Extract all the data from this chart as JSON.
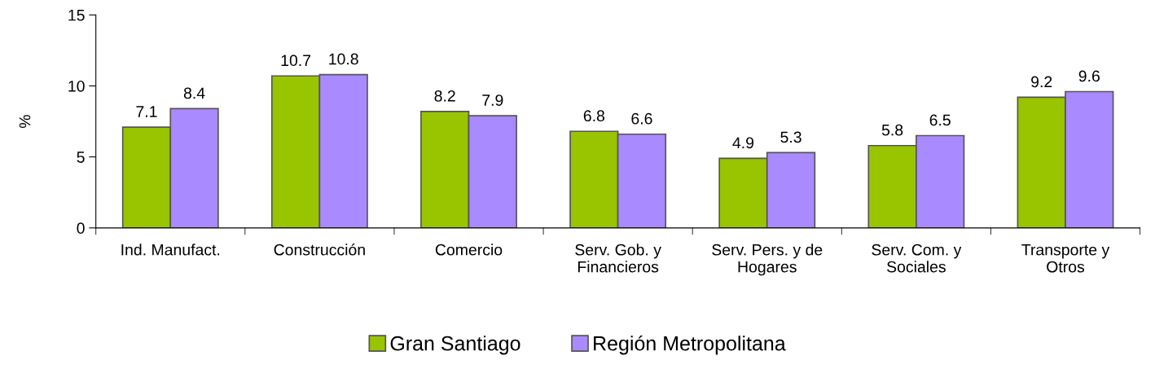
{
  "chart_data": {
    "type": "bar",
    "ylabel": "%",
    "categories": [
      "Ind. Manufact.",
      "Construcción",
      "Comercio",
      "Serv. Gob. y\nFinancieros",
      "Serv. Pers. y de\nHogares",
      "Serv. Com. y\nSociales",
      "Transporte y\nOtros"
    ],
    "series": [
      {
        "name": "Gran Santiago",
        "color": "#99c400",
        "values": [
          7.1,
          10.7,
          8.2,
          6.8,
          4.9,
          5.8,
          9.2
        ]
      },
      {
        "name": "Región Metropolitana",
        "color": "#a98bff",
        "values": [
          8.4,
          10.8,
          7.9,
          6.6,
          5.3,
          6.5,
          9.6
        ]
      }
    ],
    "ylim": [
      0,
      15
    ],
    "yticks": [
      0,
      5,
      10,
      15
    ],
    "data_labels": true,
    "grid": false,
    "legend": "bottom"
  }
}
